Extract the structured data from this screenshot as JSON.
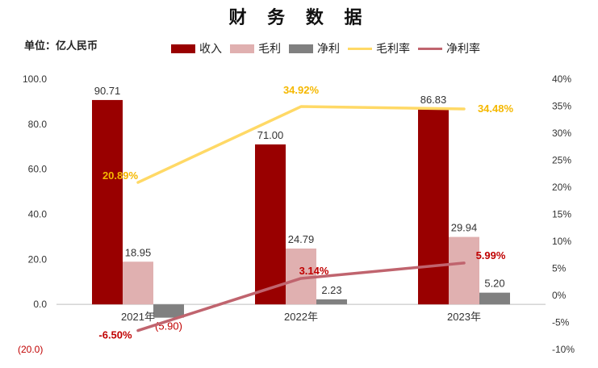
{
  "title": "财 务 数 据",
  "unit_label": "单位：亿人民币",
  "colors": {
    "revenue": "#990000",
    "gross_profit": "#e0b0b0",
    "net_profit": "#808080",
    "gross_margin": "#ffd966",
    "net_margin": "#c0646e",
    "gross_margin_label": "#f5b800",
    "net_margin_label": "#c00000",
    "negative_label": "#c00000"
  },
  "chart_data": {
    "type": "bar",
    "categories": [
      "2021年",
      "2022年",
      "2023年"
    ],
    "series": [
      {
        "name": "收入",
        "type": "bar",
        "axis": "left",
        "values": [
          90.71,
          71.0,
          86.83
        ],
        "labels": [
          "90.71",
          "71.00",
          "86.83"
        ]
      },
      {
        "name": "毛利",
        "type": "bar",
        "axis": "left",
        "values": [
          18.95,
          24.79,
          29.94
        ],
        "labels": [
          "18.95",
          "24.79",
          "29.94"
        ]
      },
      {
        "name": "净利",
        "type": "bar",
        "axis": "left",
        "values": [
          -5.9,
          2.23,
          5.2
        ],
        "labels": [
          "(5.90)",
          "2.23",
          "5.20"
        ]
      },
      {
        "name": "毛利率",
        "type": "line",
        "axis": "right",
        "values": [
          20.89,
          34.92,
          34.48
        ],
        "labels": [
          "20.89%",
          "34.92%",
          "34.48%"
        ]
      },
      {
        "name": "净利率",
        "type": "line",
        "axis": "right",
        "values": [
          -6.5,
          3.14,
          5.99
        ],
        "labels": [
          "-6.50%",
          "3.14%",
          "5.99%"
        ]
      }
    ],
    "y_left": {
      "min": -20,
      "max": 100,
      "ticks": [
        "(20.0)",
        "0.0",
        "20.0",
        "40.0",
        "60.0",
        "80.0",
        "100.0"
      ]
    },
    "y_right": {
      "min": -10,
      "max": 40,
      "ticks": [
        "-10%",
        "-5%",
        "0%",
        "5%",
        "10%",
        "15%",
        "20%",
        "25%",
        "30%",
        "35%",
        "40%"
      ]
    },
    "legend": "top",
    "grid": false
  }
}
